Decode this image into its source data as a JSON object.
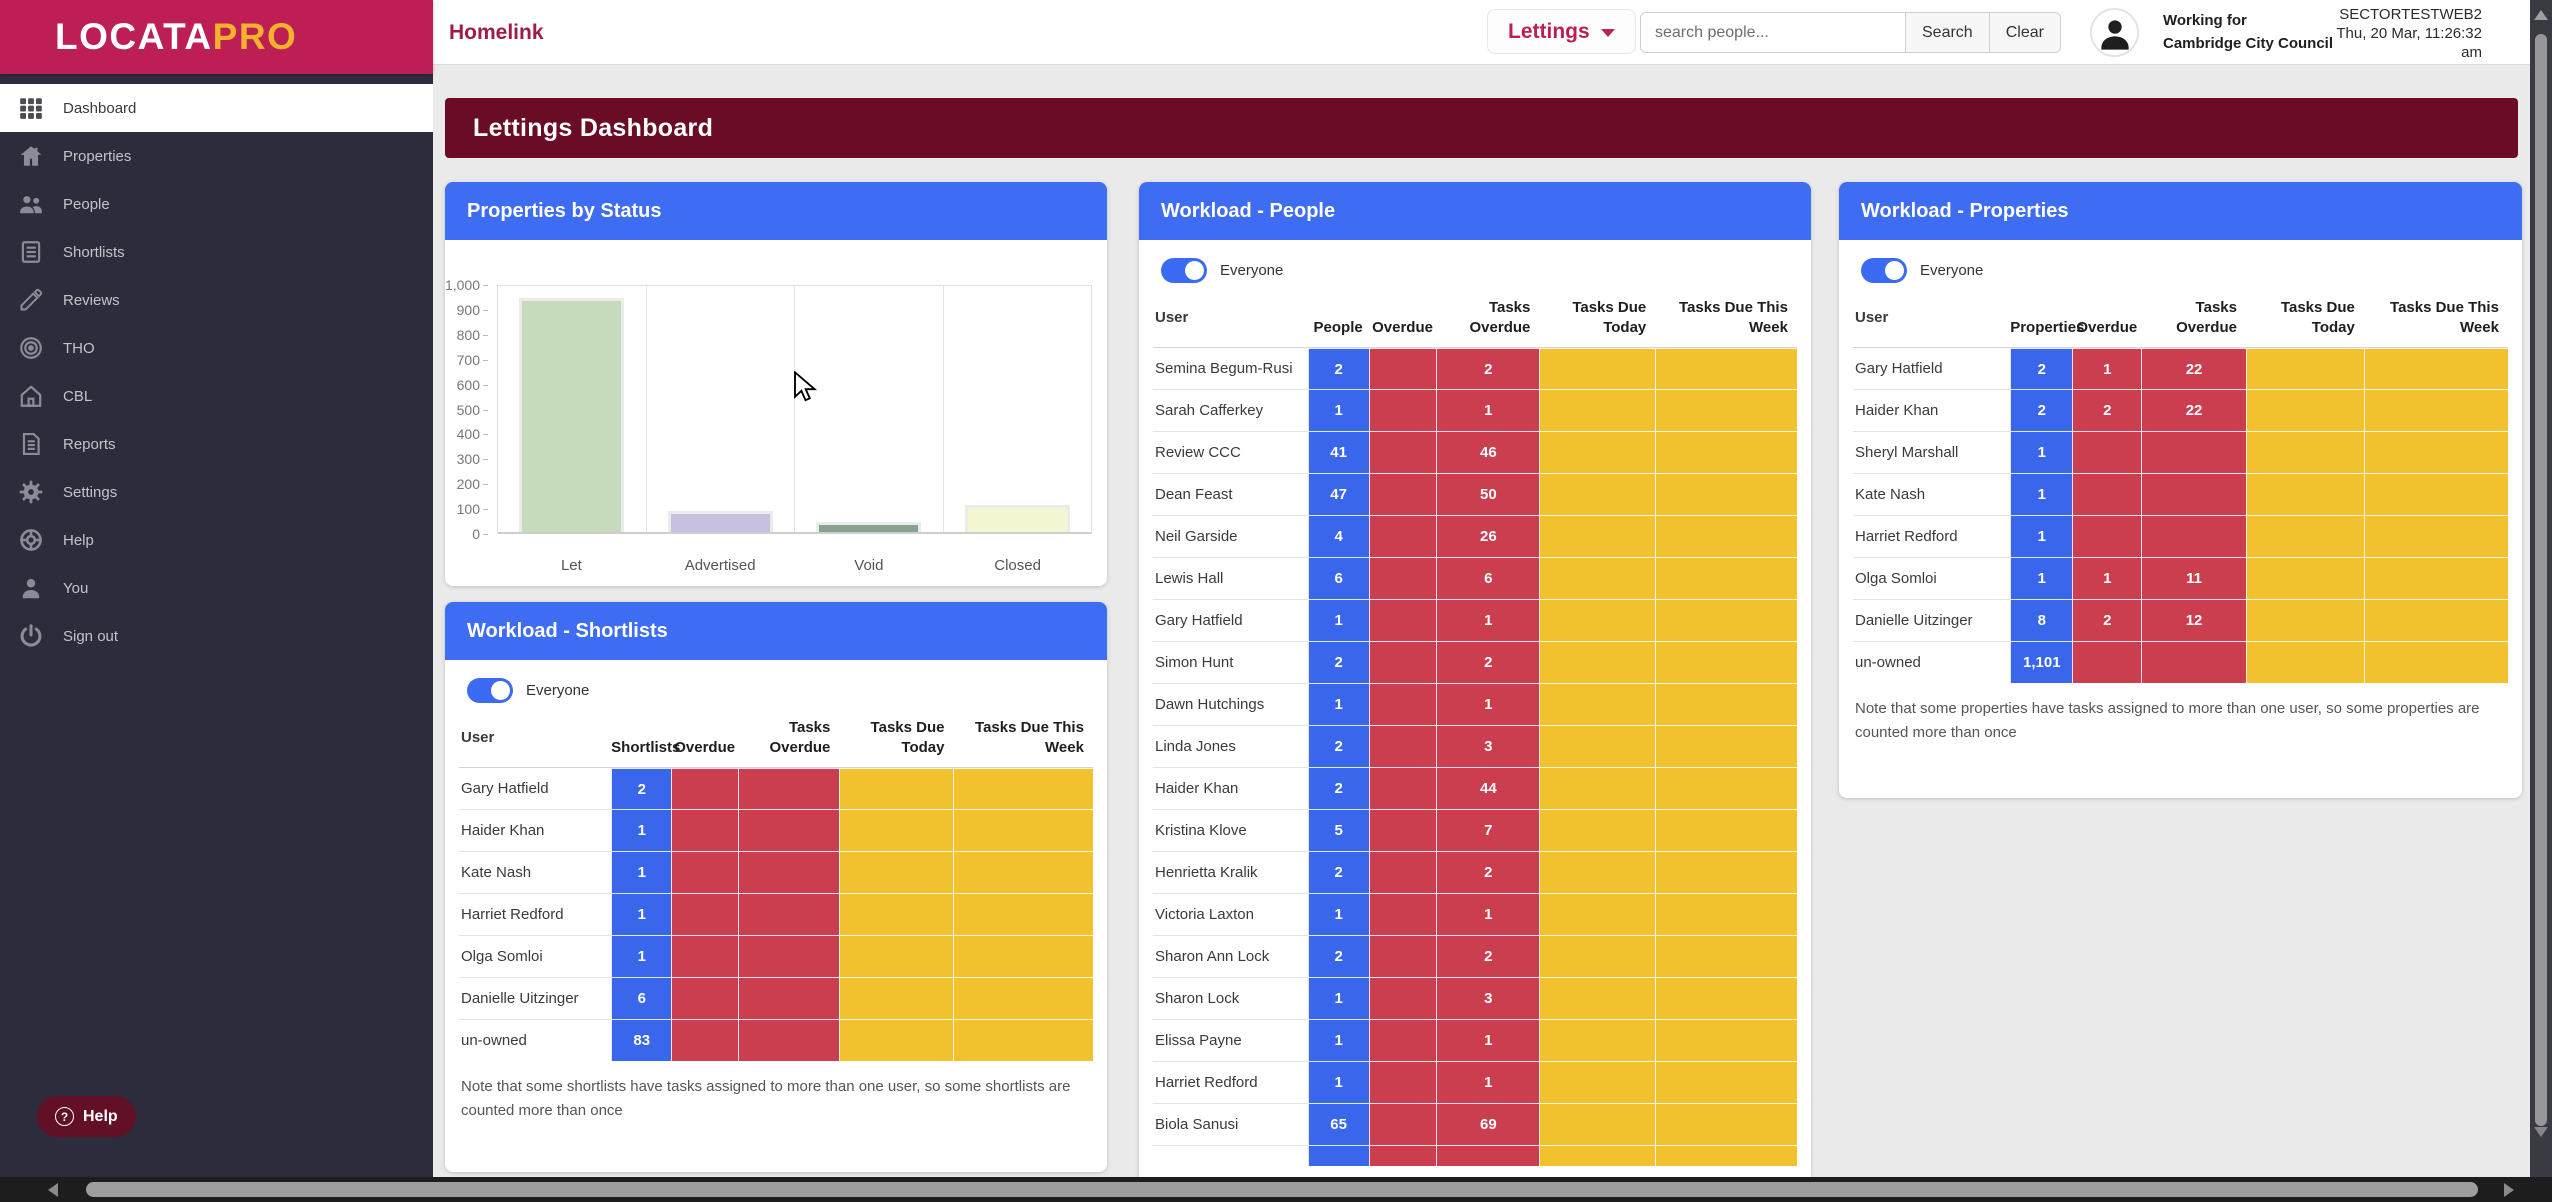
{
  "brand": {
    "logo_text_primary": "LOCATA",
    "logo_text_accent": "PRO"
  },
  "topbar": {
    "homelink": "Homelink",
    "module_selector": "Lettings",
    "search": {
      "placeholder": "search people...",
      "value": "",
      "search_label": "Search",
      "clear_label": "Clear"
    },
    "working_for_label": "Working for",
    "working_for_value": "Cambridge City Council",
    "environment": "SECTORTESTWEB2",
    "datetime": "Thu, 20 Mar, 11:26:32",
    "meridiem": "am"
  },
  "sidebar": {
    "items": [
      {
        "label": "Dashboard",
        "icon": "dashboard-grid",
        "active": true
      },
      {
        "label": "Properties",
        "icon": "house"
      },
      {
        "label": "People",
        "icon": "people-group"
      },
      {
        "label": "Shortlists",
        "icon": "shortlist"
      },
      {
        "label": "Reviews",
        "icon": "pencil"
      },
      {
        "label": "THO",
        "icon": "bullseye"
      },
      {
        "label": "CBL",
        "icon": "home-outline"
      },
      {
        "label": "Reports",
        "icon": "document"
      },
      {
        "label": "Settings",
        "icon": "gear"
      },
      {
        "label": "Help",
        "icon": "life-ring"
      },
      {
        "label": "You",
        "icon": "person"
      },
      {
        "label": "Sign out",
        "icon": "power"
      }
    ]
  },
  "page": {
    "title": "Lettings Dashboard"
  },
  "help_button": {
    "label": "Help",
    "icon_glyph": "?"
  },
  "chart_data": {
    "type": "bar",
    "title": "Properties by Status",
    "categories": [
      "Let",
      "Advertised",
      "Void",
      "Closed"
    ],
    "values": [
      950,
      85,
      40,
      110
    ],
    "bar_colors": [
      "#C5DBBB",
      "#C9BFE1",
      "#87A18F",
      "#F4F6D2"
    ],
    "xlabel": "",
    "ylabel": "",
    "ylim": [
      0,
      1000
    ],
    "yticks": [
      "1,000",
      "900",
      "800",
      "700",
      "600",
      "500",
      "400",
      "300",
      "200",
      "100",
      "0"
    ],
    "grid": "vertical-only",
    "legend": false
  },
  "panels": {
    "properties_by_status": {
      "title": "Properties by Status"
    },
    "workload_people": {
      "title": "Workload - People",
      "toggle_label": "Everyone",
      "toggle_on": true,
      "columns": [
        "User",
        "People",
        "Overdue",
        "Tasks Overdue",
        "Tasks Due Today",
        "Tasks Due This Week"
      ],
      "rows": [
        {
          "user": "Semina Begum-Rusi",
          "count": "2",
          "overdue": "",
          "tasks_overdue": "2",
          "due_today": "",
          "due_week": ""
        },
        {
          "user": "Sarah Cafferkey",
          "count": "1",
          "overdue": "",
          "tasks_overdue": "1",
          "due_today": "",
          "due_week": ""
        },
        {
          "user": "Review CCC",
          "count": "41",
          "overdue": "",
          "tasks_overdue": "46",
          "due_today": "",
          "due_week": ""
        },
        {
          "user": "Dean Feast",
          "count": "47",
          "overdue": "",
          "tasks_overdue": "50",
          "due_today": "",
          "due_week": ""
        },
        {
          "user": "Neil Garside",
          "count": "4",
          "overdue": "",
          "tasks_overdue": "26",
          "due_today": "",
          "due_week": ""
        },
        {
          "user": "Lewis Hall",
          "count": "6",
          "overdue": "",
          "tasks_overdue": "6",
          "due_today": "",
          "due_week": ""
        },
        {
          "user": "Gary Hatfield",
          "count": "1",
          "overdue": "",
          "tasks_overdue": "1",
          "due_today": "",
          "due_week": ""
        },
        {
          "user": "Simon Hunt",
          "count": "2",
          "overdue": "",
          "tasks_overdue": "2",
          "due_today": "",
          "due_week": ""
        },
        {
          "user": "Dawn Hutchings",
          "count": "1",
          "overdue": "",
          "tasks_overdue": "1",
          "due_today": "",
          "due_week": ""
        },
        {
          "user": "Linda Jones",
          "count": "2",
          "overdue": "",
          "tasks_overdue": "3",
          "due_today": "",
          "due_week": ""
        },
        {
          "user": "Haider Khan",
          "count": "2",
          "overdue": "",
          "tasks_overdue": "44",
          "due_today": "",
          "due_week": ""
        },
        {
          "user": "Kristina Klove",
          "count": "5",
          "overdue": "",
          "tasks_overdue": "7",
          "due_today": "",
          "due_week": ""
        },
        {
          "user": "Henrietta Kralik",
          "count": "2",
          "overdue": "",
          "tasks_overdue": "2",
          "due_today": "",
          "due_week": ""
        },
        {
          "user": "Victoria Laxton",
          "count": "1",
          "overdue": "",
          "tasks_overdue": "1",
          "due_today": "",
          "due_week": ""
        },
        {
          "user": "Sharon Ann Lock",
          "count": "2",
          "overdue": "",
          "tasks_overdue": "2",
          "due_today": "",
          "due_week": ""
        },
        {
          "user": "Sharon Lock",
          "count": "1",
          "overdue": "",
          "tasks_overdue": "3",
          "due_today": "",
          "due_week": ""
        },
        {
          "user": "Elissa Payne",
          "count": "1",
          "overdue": "",
          "tasks_overdue": "1",
          "due_today": "",
          "due_week": ""
        },
        {
          "user": "Harriet Redford",
          "count": "1",
          "overdue": "",
          "tasks_overdue": "1",
          "due_today": "",
          "due_week": ""
        },
        {
          "user": "Biola Sanusi",
          "count": "65",
          "overdue": "",
          "tasks_overdue": "69",
          "due_today": "",
          "due_week": ""
        },
        {
          "user": "",
          "count": "",
          "overdue": "",
          "tasks_overdue": "",
          "due_today": "",
          "due_week": ""
        }
      ]
    },
    "workload_properties": {
      "title": "Workload - Properties",
      "toggle_label": "Everyone",
      "toggle_on": true,
      "columns": [
        "User",
        "Properties",
        "Overdue",
        "Tasks Overdue",
        "Tasks Due Today",
        "Tasks Due This Week"
      ],
      "rows": [
        {
          "user": "Gary Hatfield",
          "count": "2",
          "overdue": "1",
          "tasks_overdue": "22",
          "due_today": "",
          "due_week": ""
        },
        {
          "user": "Haider Khan",
          "count": "2",
          "overdue": "2",
          "tasks_overdue": "22",
          "due_today": "",
          "due_week": ""
        },
        {
          "user": "Sheryl Marshall",
          "count": "1",
          "overdue": "",
          "tasks_overdue": "",
          "due_today": "",
          "due_week": ""
        },
        {
          "user": "Kate Nash",
          "count": "1",
          "overdue": "",
          "tasks_overdue": "",
          "due_today": "",
          "due_week": ""
        },
        {
          "user": "Harriet Redford",
          "count": "1",
          "overdue": "",
          "tasks_overdue": "",
          "due_today": "",
          "due_week": ""
        },
        {
          "user": "Olga Somloi",
          "count": "1",
          "overdue": "1",
          "tasks_overdue": "11",
          "due_today": "",
          "due_week": ""
        },
        {
          "user": "Danielle Uitzinger",
          "count": "8",
          "overdue": "2",
          "tasks_overdue": "12",
          "due_today": "",
          "due_week": ""
        },
        {
          "user": "un-owned",
          "count": "1,101",
          "overdue": "",
          "tasks_overdue": "",
          "due_today": "",
          "due_week": ""
        }
      ],
      "note": "Note that some properties have tasks assigned to more than one user, so some properties are counted more than once"
    },
    "workload_shortlists": {
      "title": "Workload - Shortlists",
      "toggle_label": "Everyone",
      "toggle_on": true,
      "columns": [
        "User",
        "Shortlists",
        "Overdue",
        "Tasks Overdue",
        "Tasks Due Today",
        "Tasks Due This Week"
      ],
      "rows": [
        {
          "user": "Gary Hatfield",
          "count": "2",
          "overdue": "",
          "tasks_overdue": "",
          "due_today": "",
          "due_week": ""
        },
        {
          "user": "Haider Khan",
          "count": "1",
          "overdue": "",
          "tasks_overdue": "",
          "due_today": "",
          "due_week": ""
        },
        {
          "user": "Kate Nash",
          "count": "1",
          "overdue": "",
          "tasks_overdue": "",
          "due_today": "",
          "due_week": ""
        },
        {
          "user": "Harriet Redford",
          "count": "1",
          "overdue": "",
          "tasks_overdue": "",
          "due_today": "",
          "due_week": ""
        },
        {
          "user": "Olga Somloi",
          "count": "1",
          "overdue": "",
          "tasks_overdue": "",
          "due_today": "",
          "due_week": ""
        },
        {
          "user": "Danielle Uitzinger",
          "count": "6",
          "overdue": "",
          "tasks_overdue": "",
          "due_today": "",
          "due_week": ""
        },
        {
          "user": "un-owned",
          "count": "83",
          "overdue": "",
          "tasks_overdue": "",
          "due_today": "",
          "due_week": ""
        }
      ],
      "note": "Note that some shortlists have tasks assigned to more than one user, so some shortlists are counted more than once"
    }
  },
  "colors": {
    "brand_crimson": "#BE1E56",
    "brand_gold": "#F2B32B",
    "banner_maroon": "#6B0C26",
    "panel_header_blue": "#3E6CF3",
    "cell_blue": "#3A66EC",
    "cell_red": "#CB3E4F",
    "cell_yellow": "#F2C12E",
    "sidebar_bg": "#2D2C3C"
  }
}
